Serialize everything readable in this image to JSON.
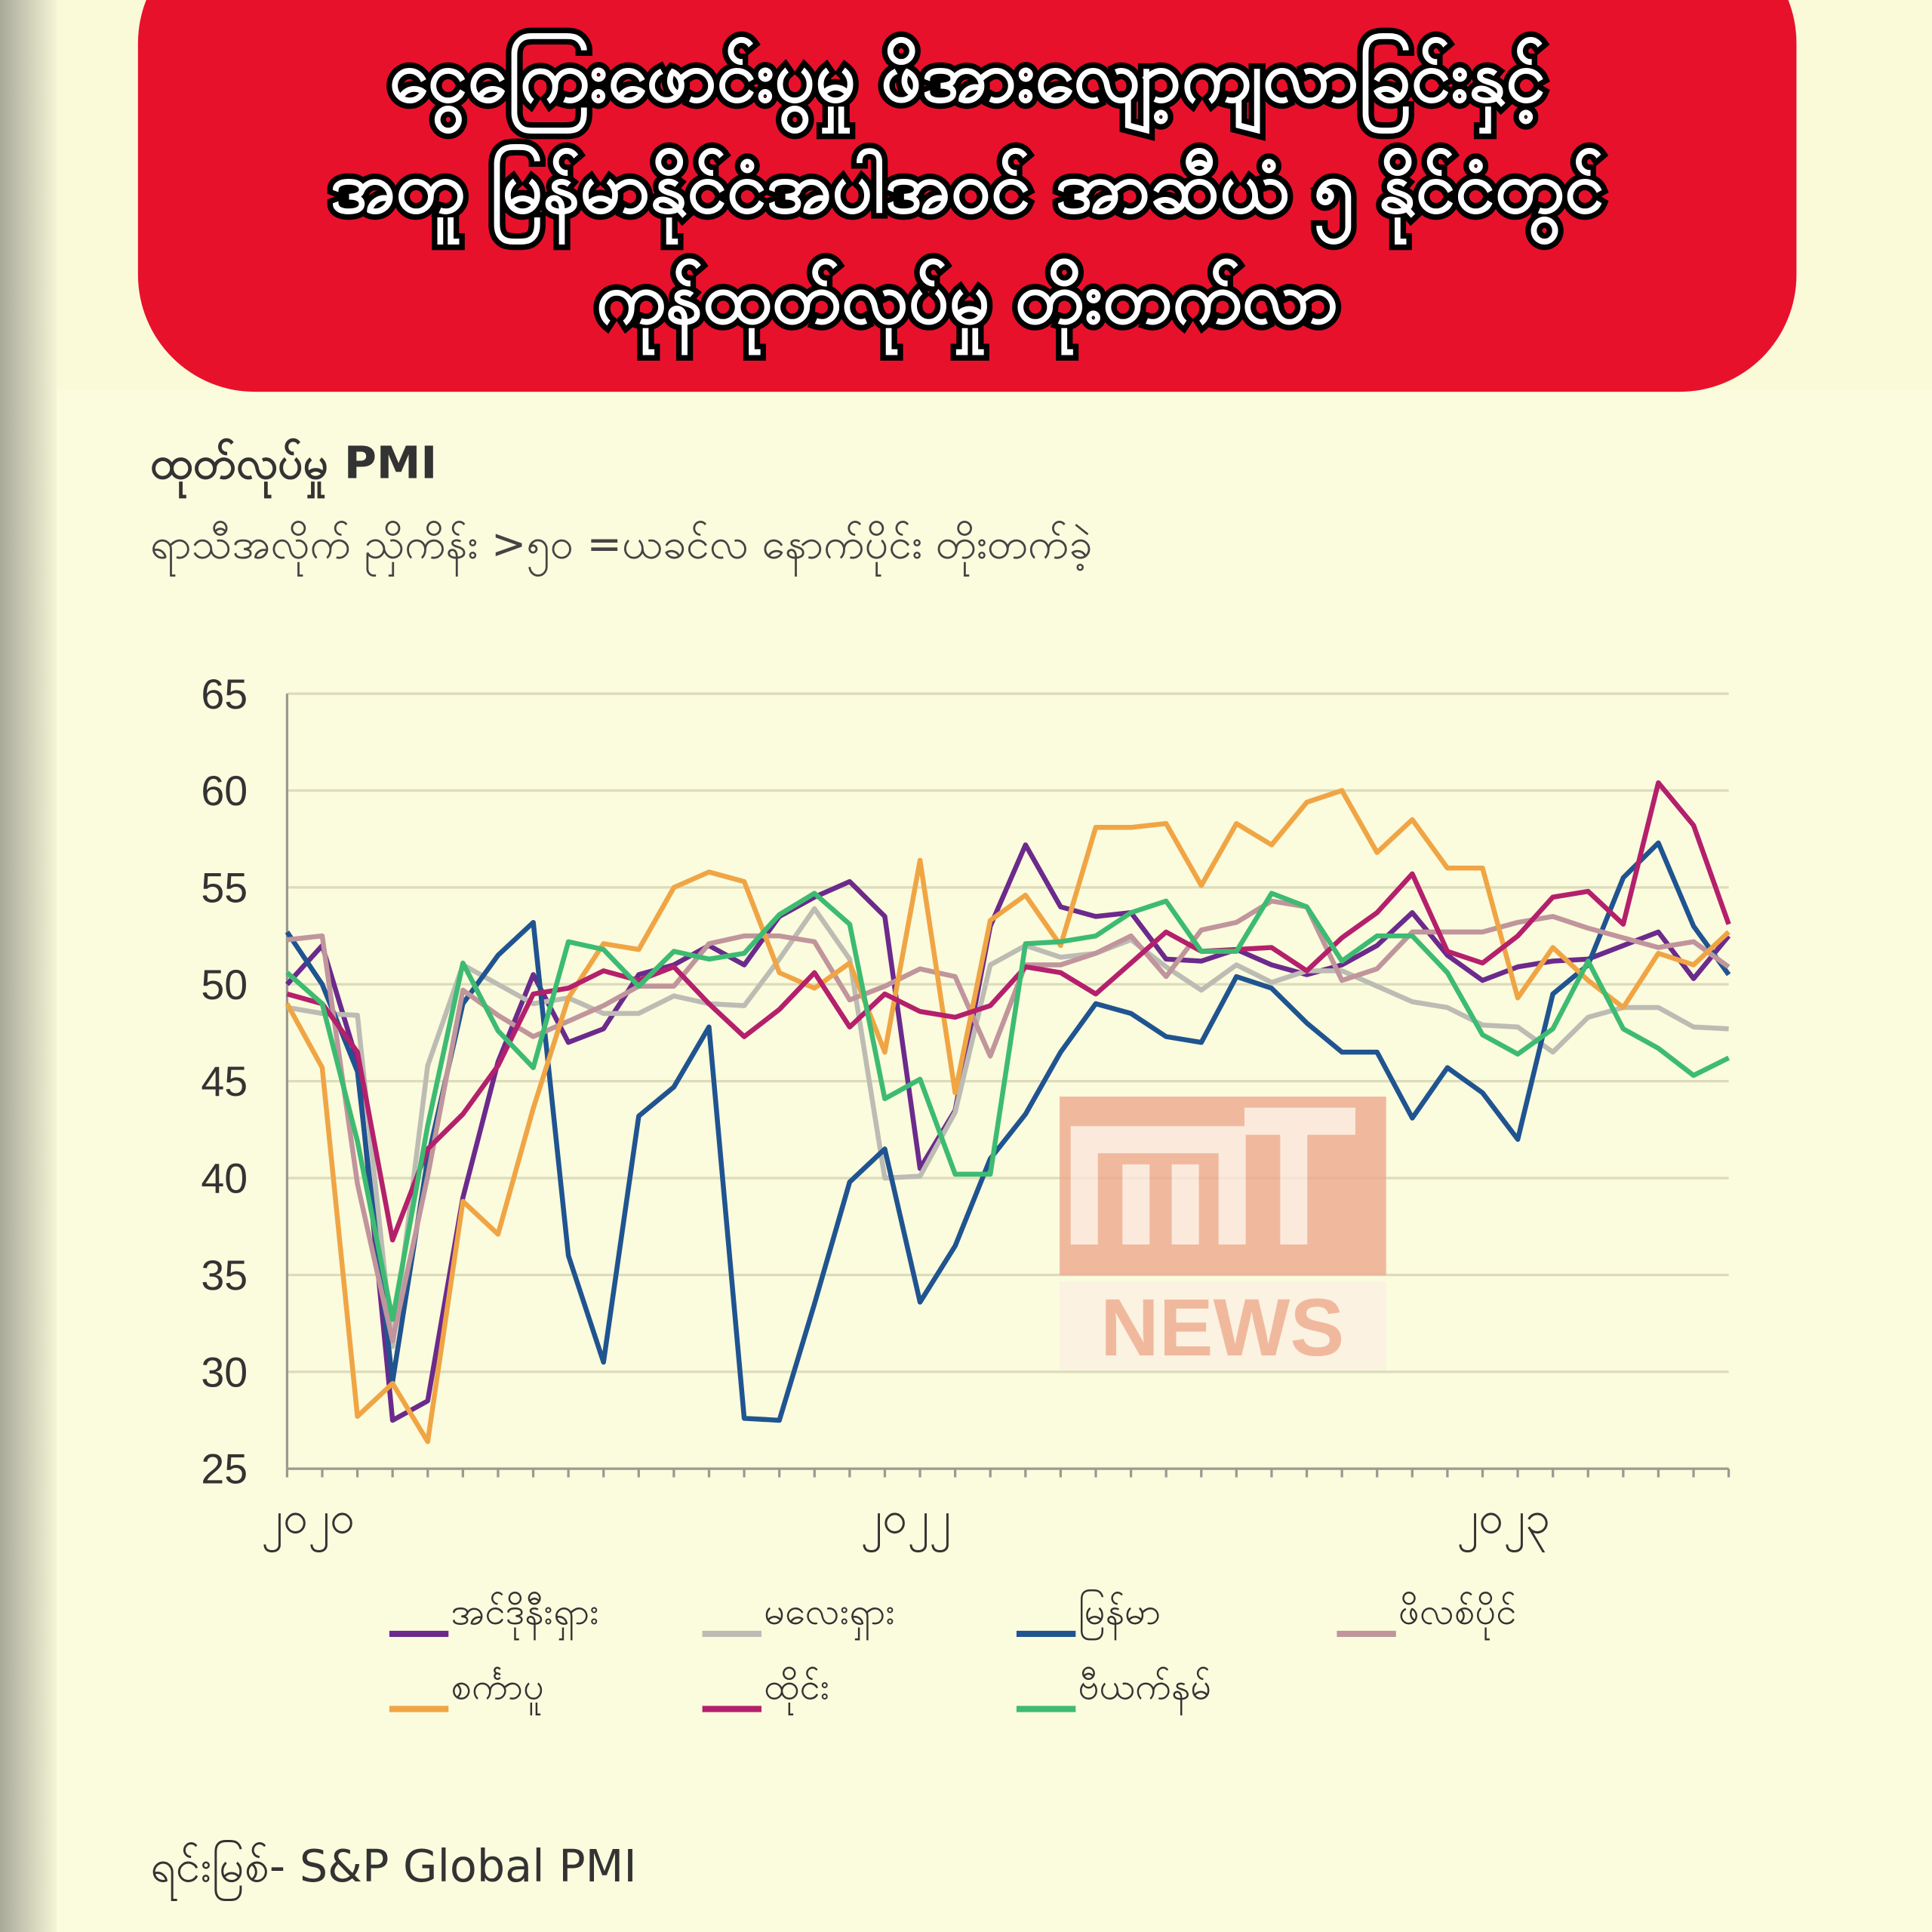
{
  "header": {
    "title_lines": [
      "ငွေကြေးဖောင်းပွမှု ဖိအားလျော့ကျလာခြင်းနှင့်",
      "အတူ မြန်မာနိုင်ငံအပါအဝင် အာဆီယံ ၅ နိုင်ငံတွင်",
      "ကုန်ထုတ်လုပ်မှု တိုးတက်လာ"
    ]
  },
  "watermark": "NEWS",
  "chart_data": {
    "type": "line",
    "title": "ထုတ်လုပ်မှု PMI",
    "subtitle": "ရာသီအလိုက် ညှိကိန်း >၅၀ =ယခင်လ နောက်ပိုင်း တိုးတက်ခဲ့",
    "source": "ရင်းမြစ်- S&P Global PMI",
    "categories": [
      "၂၀၂၀",
      null,
      null,
      null,
      null,
      null,
      null,
      null,
      null,
      null,
      null,
      null,
      null,
      null,
      null,
      null,
      null,
      "၂၀၂၂",
      null,
      null,
      null,
      null,
      null,
      null,
      null,
      null,
      null,
      null,
      null,
      null,
      null,
      null,
      null,
      null,
      "၂၀၂၃",
      null,
      null,
      null,
      null,
      null,
      null,
      null
    ],
    "ylim": [
      25,
      65
    ],
    "yticks": [
      25,
      30,
      35,
      40,
      45,
      50,
      55,
      60,
      65
    ],
    "grid": true,
    "series": [
      {
        "name": "အင်ဒိုနီးရှား",
        "color": "#6b2a8c",
        "values": [
          50,
          52,
          46,
          27.5,
          28.5,
          39,
          46,
          50.5,
          47,
          47.7,
          50.5,
          51,
          52,
          51,
          53.5,
          54.5,
          55.3,
          53.5,
          40.5,
          43.5,
          53,
          57.2,
          54,
          53.5,
          53.7,
          51.3,
          51.2,
          51.8,
          51,
          50.5,
          51,
          52,
          53.7,
          51.5,
          50.2,
          50.9,
          51.2,
          51.3,
          52,
          52.7,
          50.3,
          52.5
        ]
      },
      {
        "name": "မလေးရှား",
        "color": "#bcbcb4",
        "values": [
          48.8,
          48.5,
          48.4,
          31.3,
          45.8,
          51,
          50,
          49,
          49.3,
          48.5,
          48.5,
          49.4,
          49,
          48.9,
          51.3,
          53.9,
          51.3,
          40,
          40.1,
          43.4,
          51,
          52,
          51.4,
          51.6,
          52.3,
          50.9,
          49.7,
          51,
          50.1,
          50.7,
          50.7,
          49.9,
          49.1,
          48.8,
          47.9,
          47.8,
          46.5,
          48.3,
          48.8,
          48.8,
          47.8,
          47.7
        ]
      },
      {
        "name": "မြန်မာ",
        "color": "#1f5490",
        "values": [
          52.7,
          50,
          45.5,
          29.5,
          41,
          49,
          51.5,
          53.2,
          36,
          30.5,
          43.2,
          44.7,
          47.8,
          27.6,
          27.5,
          33.5,
          39.8,
          41.5,
          33.6,
          36.5,
          41,
          43.3,
          46.5,
          49,
          48.5,
          47.3,
          47,
          50.4,
          49.8,
          48,
          46.5,
          46.5,
          43.1,
          45.7,
          44.4,
          42,
          49.5,
          51,
          55.5,
          57.3,
          53,
          50.5
        ]
      },
      {
        "name": "ဖိလစ်ပိုင်",
        "color": "#c0959c",
        "values": [
          52.3,
          52.5,
          39.7,
          31.6,
          40.1,
          49.7,
          48.4,
          47.3,
          48.1,
          48.9,
          49.9,
          49.9,
          52.1,
          52.5,
          52.5,
          52.2,
          49.2,
          49.9,
          50.8,
          50.4,
          46.3,
          51,
          51,
          51.6,
          52.5,
          50.4,
          52.8,
          53.2,
          54.3,
          54,
          50.2,
          50.8,
          52.7,
          52.7,
          52.7,
          53.2,
          53.5,
          52.9,
          52.4,
          51.9,
          52.2,
          50.9
        ]
      },
      {
        "name": "စင်္ကာပူ",
        "color": "#f0a545",
        "values": [
          49,
          45.7,
          27.7,
          29.4,
          26.4,
          38.8,
          37.1,
          43.6,
          49.3,
          52.1,
          51.8,
          55,
          55.8,
          55.3,
          50.6,
          49.8,
          51.1,
          46.5,
          56.4,
          44.4,
          53.3,
          54.6,
          52,
          58.1,
          58.1,
          58.3,
          55.1,
          58.3,
          57.2,
          59.4,
          60,
          56.8,
          58.5,
          56,
          56,
          49.3,
          51.9,
          50.2,
          48.8,
          51.6,
          51,
          52.7
        ]
      },
      {
        "name": "ထိုင်း",
        "color": "#b4206c",
        "values": [
          49.5,
          49,
          46.5,
          36.8,
          41.5,
          43.3,
          45.8,
          49.5,
          49.8,
          50.7,
          50.2,
          50.9,
          49,
          47.3,
          48.7,
          50.6,
          47.8,
          49.5,
          48.6,
          48.3,
          48.9,
          50.9,
          50.6,
          49.5,
          51.1,
          52.7,
          51.7,
          51.8,
          51.9,
          50.7,
          52.4,
          53.7,
          55.7,
          51.7,
          51.1,
          52.5,
          54.5,
          54.8,
          53.1,
          60.4,
          58.2,
          53.1
        ]
      },
      {
        "name": "ဗီယက်နမ်",
        "color": "#3dbb72",
        "values": [
          50.6,
          49,
          41.9,
          32.7,
          42.7,
          51.1,
          47.6,
          45.7,
          52.2,
          51.8,
          49.9,
          51.7,
          51.3,
          51.6,
          53.6,
          54.7,
          53.1,
          44.1,
          45.1,
          40.2,
          40.2,
          52.1,
          52.2,
          52.5,
          53.7,
          54.3,
          51.7,
          51.7,
          54.7,
          54,
          51.2,
          52.5,
          52.5,
          50.6,
          47.4,
          46.4,
          47.7,
          51.2,
          47.7,
          46.7,
          45.3,
          46.2
        ]
      }
    ]
  }
}
